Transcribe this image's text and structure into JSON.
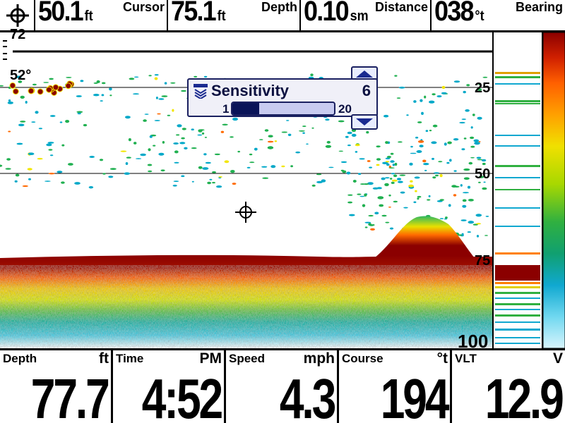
{
  "top_bar": {
    "cursor_icon": "crosshair-icon",
    "readouts": [
      {
        "value": "50.1",
        "unit": "ft",
        "label": "Cursor"
      },
      {
        "value": "75.1",
        "unit": "ft",
        "label": "Depth"
      },
      {
        "value": "0.10",
        "unit": "sm",
        "label": "Distance"
      },
      {
        "value": "038",
        "unit": "°t",
        "label": "Bearing"
      }
    ]
  },
  "sonar": {
    "temperature": "52°",
    "top_scale_partial": "72",
    "depth_scale": [
      "25",
      "50",
      "75",
      "100"
    ],
    "cursor_icon": "crosshair-icon"
  },
  "sensitivity": {
    "icon": "sensitivity-icon",
    "title": "Sensitivity",
    "value": "6",
    "min": "1",
    "max": "20",
    "level": 6
  },
  "bottom_bar": {
    "readouts": [
      {
        "label": "Depth",
        "unit": "ft",
        "value": "77.7"
      },
      {
        "label": "Time",
        "unit": "PM",
        "value": "4:52"
      },
      {
        "label": "Speed",
        "unit": "mph",
        "value": "4.3"
      },
      {
        "label": "Course",
        "unit": "°t",
        "value": "194"
      },
      {
        "label": "VLT",
        "unit": "V",
        "value": "12.9"
      }
    ]
  },
  "colors": {
    "bottom_return": "#8b0000",
    "mid_return": "#ff6a00",
    "yellow_return": "#f2e600",
    "weak_return": "#20b050",
    "faint_return": "#00a8c8",
    "popup_border": "#1a2060"
  }
}
